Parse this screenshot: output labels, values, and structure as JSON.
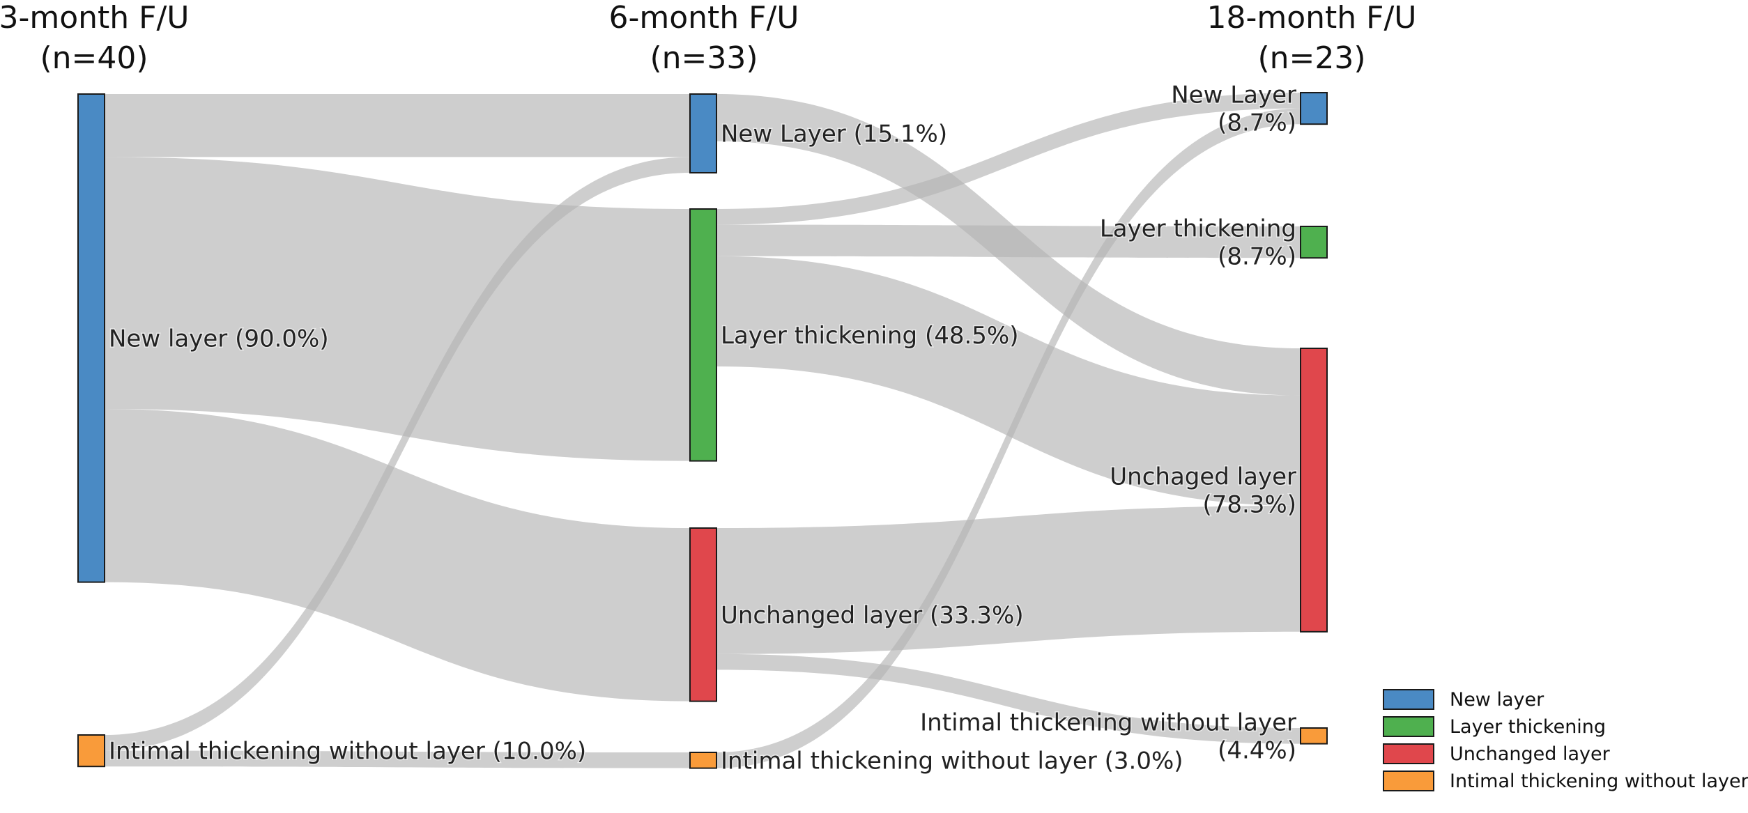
{
  "columns": [
    {
      "title": "3-month F/U",
      "n": "(n=40)"
    },
    {
      "title": "6-month F/U",
      "n": "(n=33)"
    },
    {
      "title": "18-month F/U",
      "n": "(n=23)"
    }
  ],
  "categories": {
    "new": {
      "legend": "New layer",
      "color": "#4a8ac4"
    },
    "thick": {
      "legend": "Layer thickening",
      "color": "#4fb04f"
    },
    "unch": {
      "legend": "Unchanged layer",
      "color": "#e0474c"
    },
    "intim": {
      "legend": "Intimal thickening without layer",
      "color": "#f99b3a"
    }
  },
  "nodes": [
    {
      "id": "c0_new",
      "col": 0,
      "cat": "new",
      "lines": [
        "New layer (90.0%)"
      ]
    },
    {
      "id": "c0_intim",
      "col": 0,
      "cat": "intim",
      "lines": [
        "Intimal thickening without layer (10.0%)"
      ]
    },
    {
      "id": "c1_new",
      "col": 1,
      "cat": "new",
      "lines": [
        "New Layer (15.1%)"
      ]
    },
    {
      "id": "c1_thick",
      "col": 1,
      "cat": "thick",
      "lines": [
        "Layer thickening (48.5%)"
      ]
    },
    {
      "id": "c1_unch",
      "col": 1,
      "cat": "unch",
      "lines": [
        "Unchanged layer (33.3%)"
      ]
    },
    {
      "id": "c1_intim",
      "col": 1,
      "cat": "intim",
      "lines": [
        "Intimal thickening without layer (3.0%)"
      ]
    },
    {
      "id": "c2_new",
      "col": 2,
      "cat": "new",
      "lines": [
        "New Layer",
        "(8.7%)"
      ]
    },
    {
      "id": "c2_thick",
      "col": 2,
      "cat": "thick",
      "lines": [
        "Layer thickening",
        "(8.7%)"
      ]
    },
    {
      "id": "c2_unch",
      "col": 2,
      "cat": "unch",
      "lines": [
        "Unchaged layer",
        "(78.3%)"
      ]
    },
    {
      "id": "c2_intim",
      "col": 2,
      "cat": "intim",
      "lines": [
        "Intimal thickening without layer",
        "(4.4%)"
      ]
    }
  ],
  "links": [
    {
      "source": "c0_new",
      "target": "c1_new",
      "value": 4
    },
    {
      "source": "c0_new",
      "target": "c1_thick",
      "value": 16
    },
    {
      "source": "c0_new",
      "target": "c1_unch",
      "value": 11
    },
    {
      "source": "c0_intim",
      "target": "c1_new",
      "value": 1
    },
    {
      "source": "c0_intim",
      "target": "c1_intim",
      "value": 1
    },
    {
      "source": "c1_new",
      "target": "c2_unch",
      "value": 3
    },
    {
      "source": "c1_thick",
      "target": "c2_new",
      "value": 1
    },
    {
      "source": "c1_thick",
      "target": "c2_thick",
      "value": 2
    },
    {
      "source": "c1_thick",
      "target": "c2_unch",
      "value": 7
    },
    {
      "source": "c1_unch",
      "target": "c2_unch",
      "value": 8
    },
    {
      "source": "c1_unch",
      "target": "c2_intim",
      "value": 1
    },
    {
      "source": "c1_intim",
      "target": "c2_new",
      "value": 1
    }
  ],
  "legend_order": [
    "new",
    "thick",
    "unch",
    "intim"
  ]
}
